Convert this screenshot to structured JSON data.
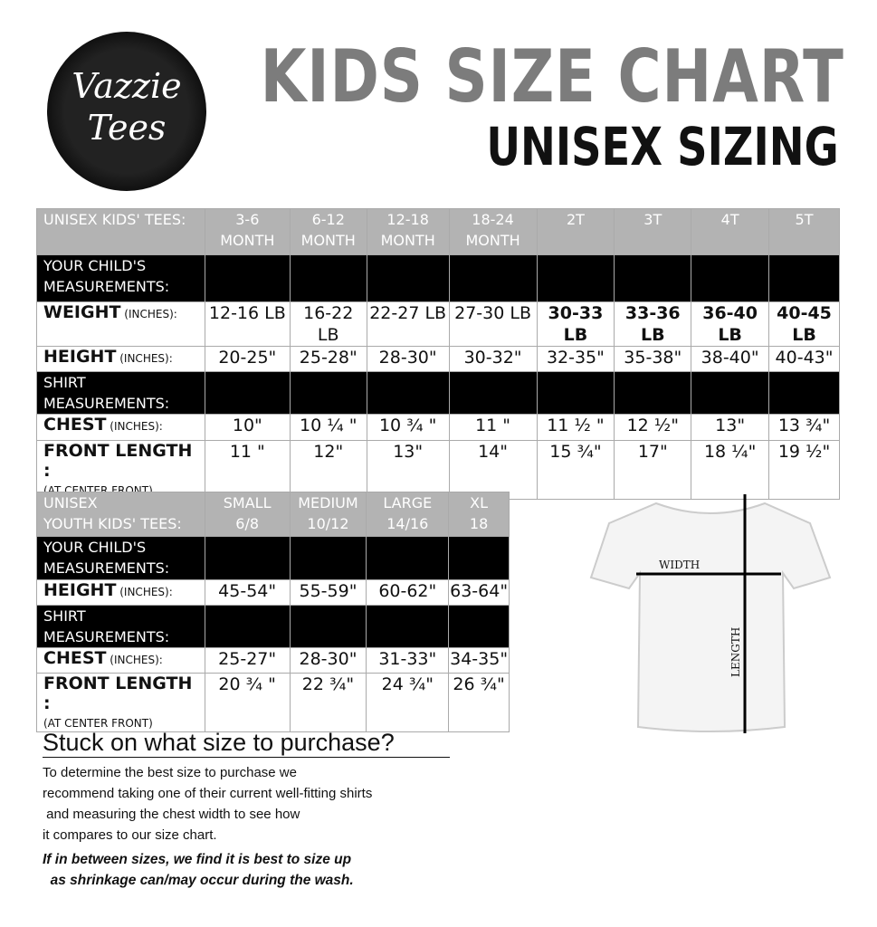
{
  "logo": {
    "line1": "Vazzie",
    "line2": "Tees"
  },
  "title": "KIDS SIZE CHART",
  "subtitle": "UNISEX SIZING",
  "table1": {
    "header": [
      "UNISEX KIDS' TEES:",
      "3-6\nMONTH",
      "6-12\nMONTH",
      "12-18\nMONTH",
      "18-24\nMONTH",
      "2T",
      "3T",
      "4T",
      "5T"
    ],
    "rows": [
      {
        "type": "black",
        "label": "YOUR CHILD'S\nMEASUREMENTS:",
        "cells": [
          "",
          "",
          "",
          "",
          "",
          "",
          "",
          ""
        ]
      },
      {
        "type": "data",
        "label": "WEIGHT",
        "sub": " (INCHES):",
        "cells": [
          "12-16 LB",
          "16-22 LB",
          "22-27 LB",
          "27-30 LB",
          "30-33 LB",
          "33-36 LB",
          "36-40 LB",
          "40-45\nLB"
        ]
      },
      {
        "type": "data",
        "label": "HEIGHT",
        "sub": " (INCHES):",
        "cells": [
          "20-25\"",
          "25-28\"",
          "28-30\"",
          "30-32\"",
          "32-35\"",
          "35-38\"",
          "38-40\"",
          "40-43\""
        ]
      },
      {
        "type": "black",
        "label": "SHIRT MEASUREMENTS:",
        "cells": [
          "",
          "",
          "",
          "",
          "",
          "",
          "",
          ""
        ]
      },
      {
        "type": "data",
        "label": "CHEST",
        "sub": " (INCHES):",
        "cells": [
          "10\"",
          "10 ¼ \"",
          "10 ¾ \"",
          "11 \"",
          "11 ½ \"",
          "12 ½\"",
          "13\"",
          "13 ¾\""
        ]
      },
      {
        "type": "data",
        "label": "FRONT LENGTH :",
        "sub": "\n(AT CENTER FRONT)",
        "cells": [
          "11 \"",
          "12\"",
          "13\"",
          "14\"",
          "15 ¾\"",
          "17\"",
          "18 ¼\"",
          "19 ½\""
        ]
      }
    ]
  },
  "table2": {
    "header": [
      "UNISEX\nYOUTH KIDS' TEES:",
      "SMALL\n6/8",
      "MEDIUM\n10/12",
      "LARGE\n14/16",
      "XL\n18"
    ],
    "rows": [
      {
        "type": "black",
        "label": "YOUR CHILD'S\nMEASUREMENTS:",
        "cells": [
          "",
          "",
          "",
          ""
        ]
      },
      {
        "type": "data",
        "label": "HEIGHT",
        "sub": " (INCHES):",
        "cells": [
          "45-54\"",
          "55-59\"",
          "60-62\"",
          "63-64\""
        ]
      },
      {
        "type": "black",
        "label": "SHIRT MEASUREMENTS:",
        "cells": [
          "",
          "",
          "",
          ""
        ]
      },
      {
        "type": "data",
        "label": "CHEST",
        "sub": " (INCHES):",
        "cells": [
          "25-27\"",
          "28-30\"",
          "31-33\"",
          "34-35\""
        ]
      },
      {
        "type": "data",
        "label": "FRONT LENGTH :",
        "sub": "\n(AT CENTER FRONT)",
        "cells": [
          "20 ¾ \"",
          "22 ¾\"",
          "24 ¾\"",
          "26 ¾\""
        ]
      }
    ]
  },
  "diagram": {
    "width_label": "WIDTH",
    "length_label": "LENGTH"
  },
  "help": {
    "title": "Stuck on what size to purchase?",
    "body": [
      "To determine the best size to purchase we",
      "recommend taking one of their current well-fitting shirts",
      " and measuring the chest width to see how",
      "it compares to our size chart."
    ],
    "note": [
      "If in between sizes, we find it is best to size up",
      "  as shrinkage can/may occur during the wash."
    ]
  }
}
